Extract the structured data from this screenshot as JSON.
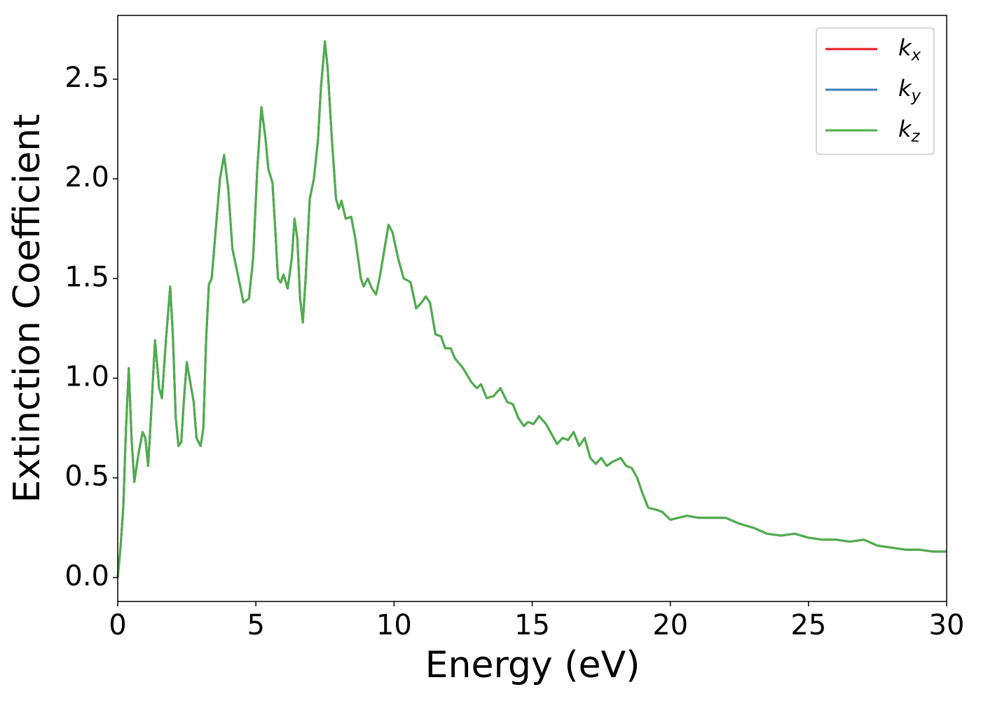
{
  "chart_data": {
    "type": "line",
    "xlabel": "Energy (eV)",
    "ylabel": "Extinction Coefficient",
    "xlim": [
      0,
      30
    ],
    "ylim": [
      -0.12,
      2.82
    ],
    "xticks": [
      0,
      5,
      10,
      15,
      20,
      25,
      30
    ],
    "yticks": [
      {
        "value": 0,
        "label": "0.0"
      },
      {
        "value": 0.5,
        "label": "0.5"
      },
      {
        "value": 1,
        "label": "1.0"
      },
      {
        "value": 1.5,
        "label": "1.5"
      },
      {
        "value": 2,
        "label": "2.0"
      },
      {
        "value": 2.5,
        "label": "2.5"
      }
    ],
    "legend": "upper right",
    "grid": false,
    "x": [
      0,
      0.1,
      0.2,
      0.3,
      0.4,
      0.5,
      0.6,
      0.75,
      0.9,
      1.0,
      1.1,
      1.2,
      1.35,
      1.5,
      1.6,
      1.75,
      1.9,
      2.0,
      2.1,
      2.2,
      2.3,
      2.4,
      2.5,
      2.6,
      2.75,
      2.85,
      3.0,
      3.1,
      3.2,
      3.3,
      3.4,
      3.55,
      3.7,
      3.85,
      4.0,
      4.15,
      4.3,
      4.45,
      4.55,
      4.75,
      4.9,
      5.05,
      5.2,
      5.35,
      5.45,
      5.6,
      5.7,
      5.8,
      5.9,
      6.0,
      6.15,
      6.3,
      6.4,
      6.5,
      6.6,
      6.7,
      6.8,
      6.95,
      7.1,
      7.25,
      7.35,
      7.5,
      7.6,
      7.75,
      7.9,
      8.0,
      8.1,
      8.25,
      8.45,
      8.6,
      8.8,
      8.9,
      9.05,
      9.2,
      9.35,
      9.5,
      9.8,
      9.95,
      10.15,
      10.35,
      10.5,
      10.6,
      10.8,
      11.0,
      11.15,
      11.3,
      11.5,
      11.7,
      11.85,
      12.05,
      12.2,
      12.5,
      12.8,
      13.0,
      13.15,
      13.35,
      13.6,
      13.85,
      14.1,
      14.3,
      14.5,
      14.7,
      14.85,
      15.05,
      15.25,
      15.5,
      15.7,
      15.9,
      16.1,
      16.3,
      16.5,
      16.7,
      16.9,
      17.1,
      17.3,
      17.5,
      17.7,
      17.9,
      18.2,
      18.4,
      18.6,
      18.8,
      19.0,
      19.2,
      19.5,
      19.7,
      20.0,
      20.3,
      20.6,
      21.0,
      21.5,
      22.0,
      22.5,
      23.0,
      23.5,
      24.0,
      24.5,
      25.0,
      25.5,
      26.0,
      26.5,
      27.0,
      27.5,
      28.0,
      28.5,
      29.0,
      29.5,
      30.0
    ],
    "series": [
      {
        "name": "kx",
        "color": "#e41a1c",
        "values": [
          0.0,
          0.15,
          0.35,
          0.75,
          1.05,
          0.7,
          0.48,
          0.62,
          0.73,
          0.7,
          0.56,
          0.8,
          1.19,
          0.95,
          0.9,
          1.2,
          1.46,
          1.2,
          0.8,
          0.66,
          0.68,
          0.9,
          1.08,
          1.0,
          0.88,
          0.7,
          0.66,
          0.75,
          1.2,
          1.47,
          1.5,
          1.75,
          2.0,
          2.12,
          1.95,
          1.65,
          1.55,
          1.45,
          1.38,
          1.4,
          1.6,
          2.05,
          2.36,
          2.2,
          2.05,
          1.98,
          1.75,
          1.5,
          1.48,
          1.52,
          1.45,
          1.6,
          1.8,
          1.7,
          1.4,
          1.28,
          1.5,
          1.9,
          2.0,
          2.2,
          2.45,
          2.69,
          2.55,
          2.2,
          1.9,
          1.85,
          1.89,
          1.8,
          1.81,
          1.7,
          1.5,
          1.46,
          1.5,
          1.45,
          1.42,
          1.52,
          1.77,
          1.73,
          1.6,
          1.5,
          1.49,
          1.48,
          1.35,
          1.38,
          1.41,
          1.38,
          1.22,
          1.21,
          1.15,
          1.15,
          1.1,
          1.05,
          0.98,
          0.95,
          0.97,
          0.9,
          0.91,
          0.95,
          0.88,
          0.87,
          0.8,
          0.76,
          0.78,
          0.77,
          0.81,
          0.77,
          0.72,
          0.67,
          0.7,
          0.69,
          0.73,
          0.66,
          0.7,
          0.6,
          0.57,
          0.6,
          0.56,
          0.58,
          0.6,
          0.56,
          0.55,
          0.5,
          0.42,
          0.35,
          0.34,
          0.33,
          0.29,
          0.3,
          0.31,
          0.3,
          0.3,
          0.3,
          0.27,
          0.25,
          0.22,
          0.21,
          0.22,
          0.2,
          0.19,
          0.19,
          0.18,
          0.19,
          0.16,
          0.15,
          0.14,
          0.14,
          0.13,
          0.13
        ]
      },
      {
        "name": "ky",
        "color": "#377eb8",
        "values": [
          0.0,
          0.15,
          0.35,
          0.75,
          1.05,
          0.7,
          0.48,
          0.62,
          0.73,
          0.7,
          0.56,
          0.8,
          1.19,
          0.95,
          0.9,
          1.2,
          1.46,
          1.2,
          0.8,
          0.66,
          0.68,
          0.9,
          1.08,
          1.0,
          0.88,
          0.7,
          0.66,
          0.75,
          1.2,
          1.47,
          1.5,
          1.75,
          2.0,
          2.12,
          1.95,
          1.65,
          1.55,
          1.45,
          1.38,
          1.4,
          1.6,
          2.05,
          2.36,
          2.2,
          2.05,
          1.98,
          1.75,
          1.5,
          1.48,
          1.52,
          1.45,
          1.6,
          1.8,
          1.7,
          1.4,
          1.28,
          1.5,
          1.9,
          2.0,
          2.2,
          2.45,
          2.69,
          2.55,
          2.2,
          1.9,
          1.85,
          1.89,
          1.8,
          1.81,
          1.7,
          1.5,
          1.46,
          1.5,
          1.45,
          1.42,
          1.52,
          1.77,
          1.73,
          1.6,
          1.5,
          1.49,
          1.48,
          1.35,
          1.38,
          1.41,
          1.38,
          1.22,
          1.21,
          1.15,
          1.15,
          1.1,
          1.05,
          0.98,
          0.95,
          0.97,
          0.9,
          0.91,
          0.95,
          0.88,
          0.87,
          0.8,
          0.76,
          0.78,
          0.77,
          0.81,
          0.77,
          0.72,
          0.67,
          0.7,
          0.69,
          0.73,
          0.66,
          0.7,
          0.6,
          0.57,
          0.6,
          0.56,
          0.58,
          0.6,
          0.56,
          0.55,
          0.5,
          0.42,
          0.35,
          0.34,
          0.33,
          0.29,
          0.3,
          0.31,
          0.3,
          0.3,
          0.3,
          0.27,
          0.25,
          0.22,
          0.21,
          0.22,
          0.2,
          0.19,
          0.19,
          0.18,
          0.19,
          0.16,
          0.15,
          0.14,
          0.14,
          0.13,
          0.13
        ]
      },
      {
        "name": "kz",
        "color": "#4daf4a",
        "values": [
          0.0,
          0.15,
          0.35,
          0.75,
          1.05,
          0.7,
          0.48,
          0.62,
          0.73,
          0.7,
          0.56,
          0.8,
          1.19,
          0.95,
          0.9,
          1.2,
          1.46,
          1.2,
          0.8,
          0.66,
          0.68,
          0.9,
          1.08,
          1.0,
          0.88,
          0.7,
          0.66,
          0.75,
          1.2,
          1.47,
          1.5,
          1.75,
          2.0,
          2.12,
          1.95,
          1.65,
          1.55,
          1.45,
          1.38,
          1.4,
          1.6,
          2.05,
          2.36,
          2.2,
          2.05,
          1.98,
          1.75,
          1.5,
          1.48,
          1.52,
          1.45,
          1.6,
          1.8,
          1.7,
          1.4,
          1.28,
          1.5,
          1.9,
          2.0,
          2.2,
          2.45,
          2.69,
          2.55,
          2.2,
          1.9,
          1.85,
          1.89,
          1.8,
          1.81,
          1.7,
          1.5,
          1.46,
          1.5,
          1.45,
          1.42,
          1.52,
          1.77,
          1.73,
          1.6,
          1.5,
          1.49,
          1.48,
          1.35,
          1.38,
          1.41,
          1.38,
          1.22,
          1.21,
          1.15,
          1.15,
          1.1,
          1.05,
          0.98,
          0.95,
          0.97,
          0.9,
          0.91,
          0.95,
          0.88,
          0.87,
          0.8,
          0.76,
          0.78,
          0.77,
          0.81,
          0.77,
          0.72,
          0.67,
          0.7,
          0.69,
          0.73,
          0.66,
          0.7,
          0.6,
          0.57,
          0.6,
          0.56,
          0.58,
          0.6,
          0.56,
          0.55,
          0.5,
          0.42,
          0.35,
          0.34,
          0.33,
          0.29,
          0.3,
          0.31,
          0.3,
          0.3,
          0.3,
          0.27,
          0.25,
          0.22,
          0.21,
          0.22,
          0.2,
          0.19,
          0.19,
          0.18,
          0.19,
          0.16,
          0.15,
          0.14,
          0.14,
          0.13,
          0.13
        ]
      }
    ]
  }
}
